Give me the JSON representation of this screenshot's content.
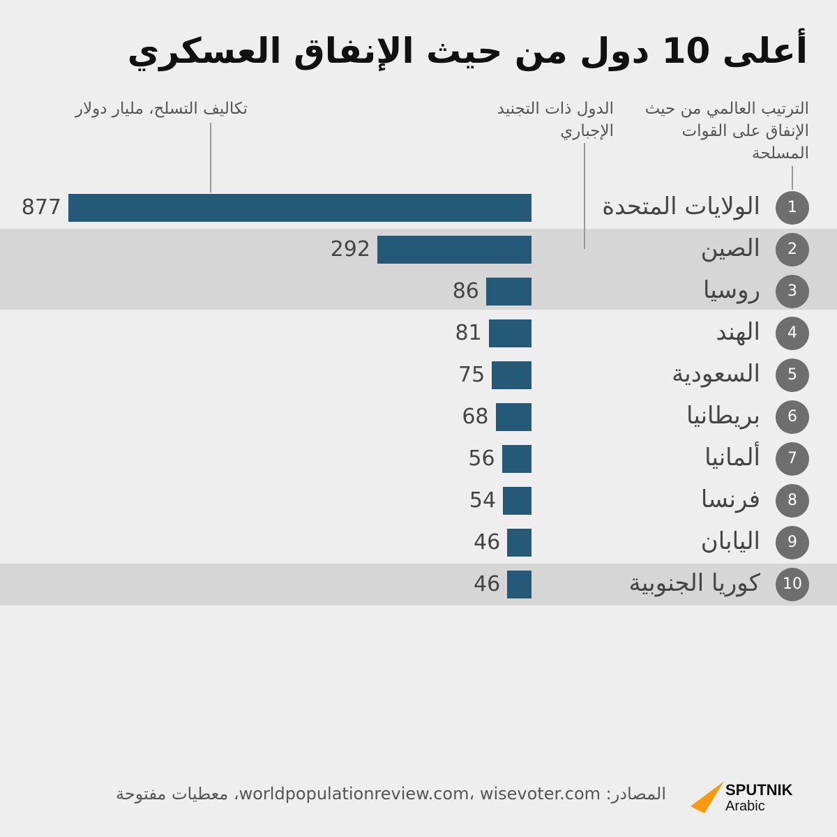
{
  "title": "أعلى 10 دول من حيث الإنفاق العسكري",
  "headers": {
    "rank": "الترتيب العالمي من حيث الإنفاق على القوات المسلحة",
    "conscription": "الدول ذات التجنيد الإجباري",
    "cost": "تكاليف التسلح، مليار دولار"
  },
  "chart_data": {
    "type": "bar",
    "orientation": "horizontal",
    "title": "أعلى 10 دول من حيث الإنفاق العسكري",
    "xlabel": "تكاليف التسلح، مليار دولار",
    "categories": [
      "الولايات المتحدة",
      "الصين",
      "روسيا",
      "الهند",
      "السعودية",
      "بريطانيا",
      "ألمانيا",
      "فرنسا",
      "اليابان",
      "كوريا الجنوبية"
    ],
    "ranks": [
      "1",
      "2",
      "3",
      "4",
      "5",
      "6",
      "7",
      "8",
      "9",
      "10"
    ],
    "values": [
      877,
      292,
      86,
      81,
      75,
      68,
      56,
      54,
      46,
      46
    ],
    "conscription": [
      false,
      true,
      true,
      false,
      false,
      false,
      false,
      false,
      false,
      true
    ],
    "bar_color": "#245a78",
    "highlight_color": "#d6d6d6",
    "rank_circle_color": "#6e6e6e"
  },
  "footer": {
    "source": "المصادر: worldpopulationreview.com، wisevoter.com، معطيات مفتوحة",
    "logo": "SPUTNIK Arabic",
    "logo_main": "SPUTNIK",
    "logo_sub": "Arabic",
    "logo_color": "#f79a0b"
  }
}
